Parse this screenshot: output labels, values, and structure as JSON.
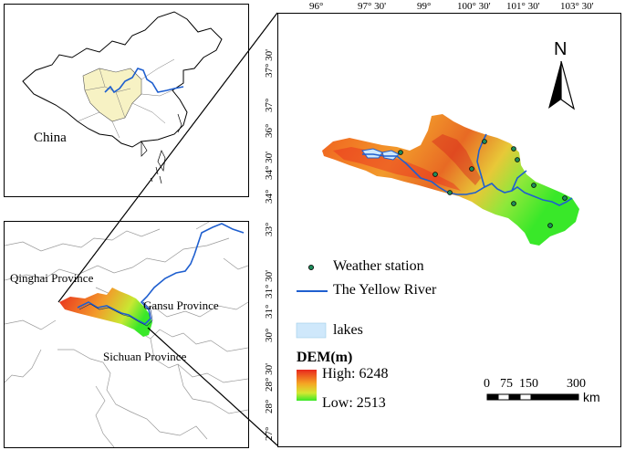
{
  "china_panel": {
    "label": "China"
  },
  "province_panel": {
    "qinghai": "Qinghai Province",
    "gansu": "Gansu Province",
    "sichuan": "Sichuan Province"
  },
  "main_map": {
    "top_ticks": [
      "96°",
      "97° 30'",
      "99°",
      "100° 30'",
      "101° 30'",
      "103° 30'"
    ],
    "left_ticks": [
      "37° 30'",
      "37°",
      "36°",
      "34° 30'",
      "34°",
      "33°",
      "31° 30'",
      "31°",
      "30°",
      "28° 30'",
      "28°",
      "27°"
    ],
    "north_label": "N",
    "legend": {
      "station": "Weather station",
      "river": "The Yellow River",
      "lakes": "lakes",
      "dem_title": "DEM(m)",
      "high": "High: 6248",
      "low": "Low: 2513"
    },
    "scale": {
      "labels": [
        "0",
        "75",
        "150",
        "300"
      ],
      "unit": "km"
    }
  },
  "colors": {
    "river": "#1f5fcf",
    "lake": "#cfe8fb",
    "dem_high": "#e8281e",
    "dem_mid": "#f5a623",
    "dem_low": "#39e829",
    "china_region": "#f7f2c4"
  }
}
